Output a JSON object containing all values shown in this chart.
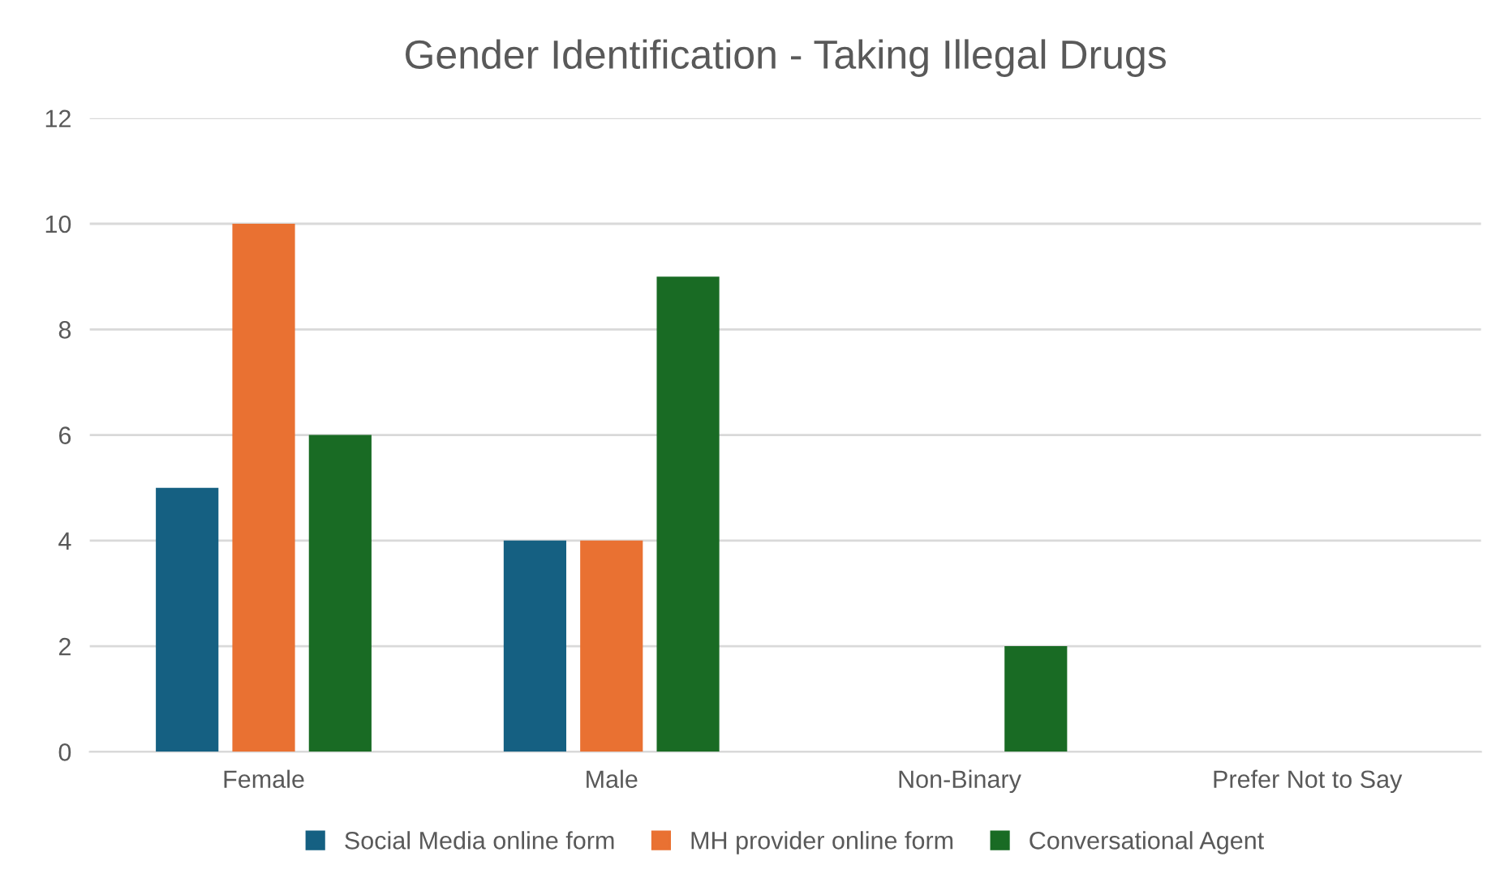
{
  "chart_data": {
    "type": "bar",
    "title": "Gender Identification - Taking Illegal Drugs",
    "categories": [
      "Female",
      "Male",
      "Non-Binary",
      "Prefer Not to Say"
    ],
    "series": [
      {
        "name": "Social Media online form",
        "color": "#156082",
        "values": [
          5,
          4,
          0,
          0
        ]
      },
      {
        "name": "MH provider online form",
        "color": "#e97132",
        "values": [
          10,
          4,
          0,
          0
        ]
      },
      {
        "name": "Conversational Agent",
        "color": "#196b24",
        "values": [
          6,
          9,
          2,
          0
        ]
      }
    ],
    "ylim": [
      0,
      12
    ],
    "yticks": [
      0,
      2,
      4,
      6,
      8,
      10,
      12
    ],
    "grid": "y",
    "legend": "bottom"
  }
}
